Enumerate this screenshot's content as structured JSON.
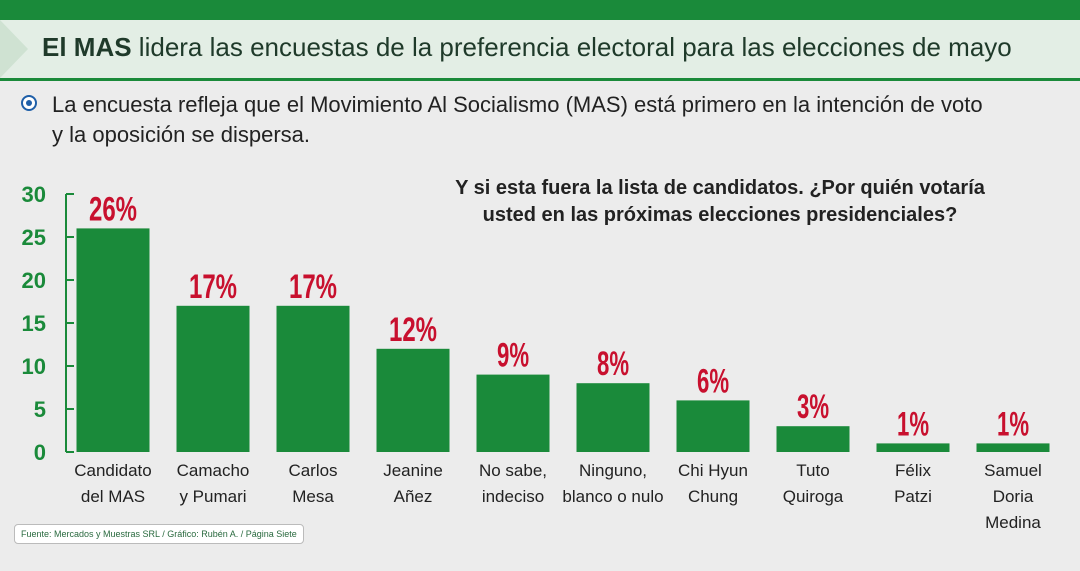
{
  "header": {
    "headline_bold": "El MAS",
    "headline_rest": " lidera las encuestas de la preferencia electoral  para las elecciones de mayo"
  },
  "subtitle": {
    "line1": "La encuesta refleja que el Movimiento Al Socialismo (MAS) está primero en la intención de voto",
    "line2": "y la oposición se dispersa."
  },
  "question": {
    "line1": "Y si esta fuera la lista de candidatos. ¿Por quién votaría",
    "line2": "usted en las próximas elecciones presidenciales?"
  },
  "source": "Fuente: Mercados y Muestras SRL / Gráfico: Rubén A. / Página Siete",
  "colors": {
    "bar": "#1a8a3a",
    "label": "#c8102e",
    "axis_text": "#1a8a3a",
    "header_bg": "#e3eee5",
    "accent": "#1a8a3a"
  },
  "chart_data": {
    "type": "bar",
    "title": "Y si esta fuera la lista de candidatos. ¿Por quién votaría usted en las próximas elecciones presidenciales?",
    "xlabel": "",
    "ylabel": "",
    "ylim": [
      0,
      30
    ],
    "yticks": [
      0,
      5,
      10,
      15,
      20,
      25,
      30
    ],
    "grid": false,
    "categories": [
      [
        "Candidato",
        "del MAS"
      ],
      [
        "Camacho",
        "y Pumari"
      ],
      [
        "Carlos",
        "Mesa"
      ],
      [
        "Jeanine",
        "Añez"
      ],
      [
        "No sabe,",
        "indeciso"
      ],
      [
        "Ninguno,",
        "blanco o nulo"
      ],
      [
        "Chi Hyun",
        "Chung"
      ],
      [
        "Tuto",
        "Quiroga"
      ],
      [
        "Félix",
        "Patzi"
      ],
      [
        "Samuel",
        "Doria",
        "Medina"
      ]
    ],
    "values": [
      26,
      17,
      17,
      12,
      9,
      8,
      6,
      3,
      1,
      1
    ],
    "data_labels": [
      "26%",
      "17%",
      "17%",
      "12%",
      "9%",
      "8%",
      "6%",
      "3%",
      "1%",
      "1%"
    ]
  }
}
